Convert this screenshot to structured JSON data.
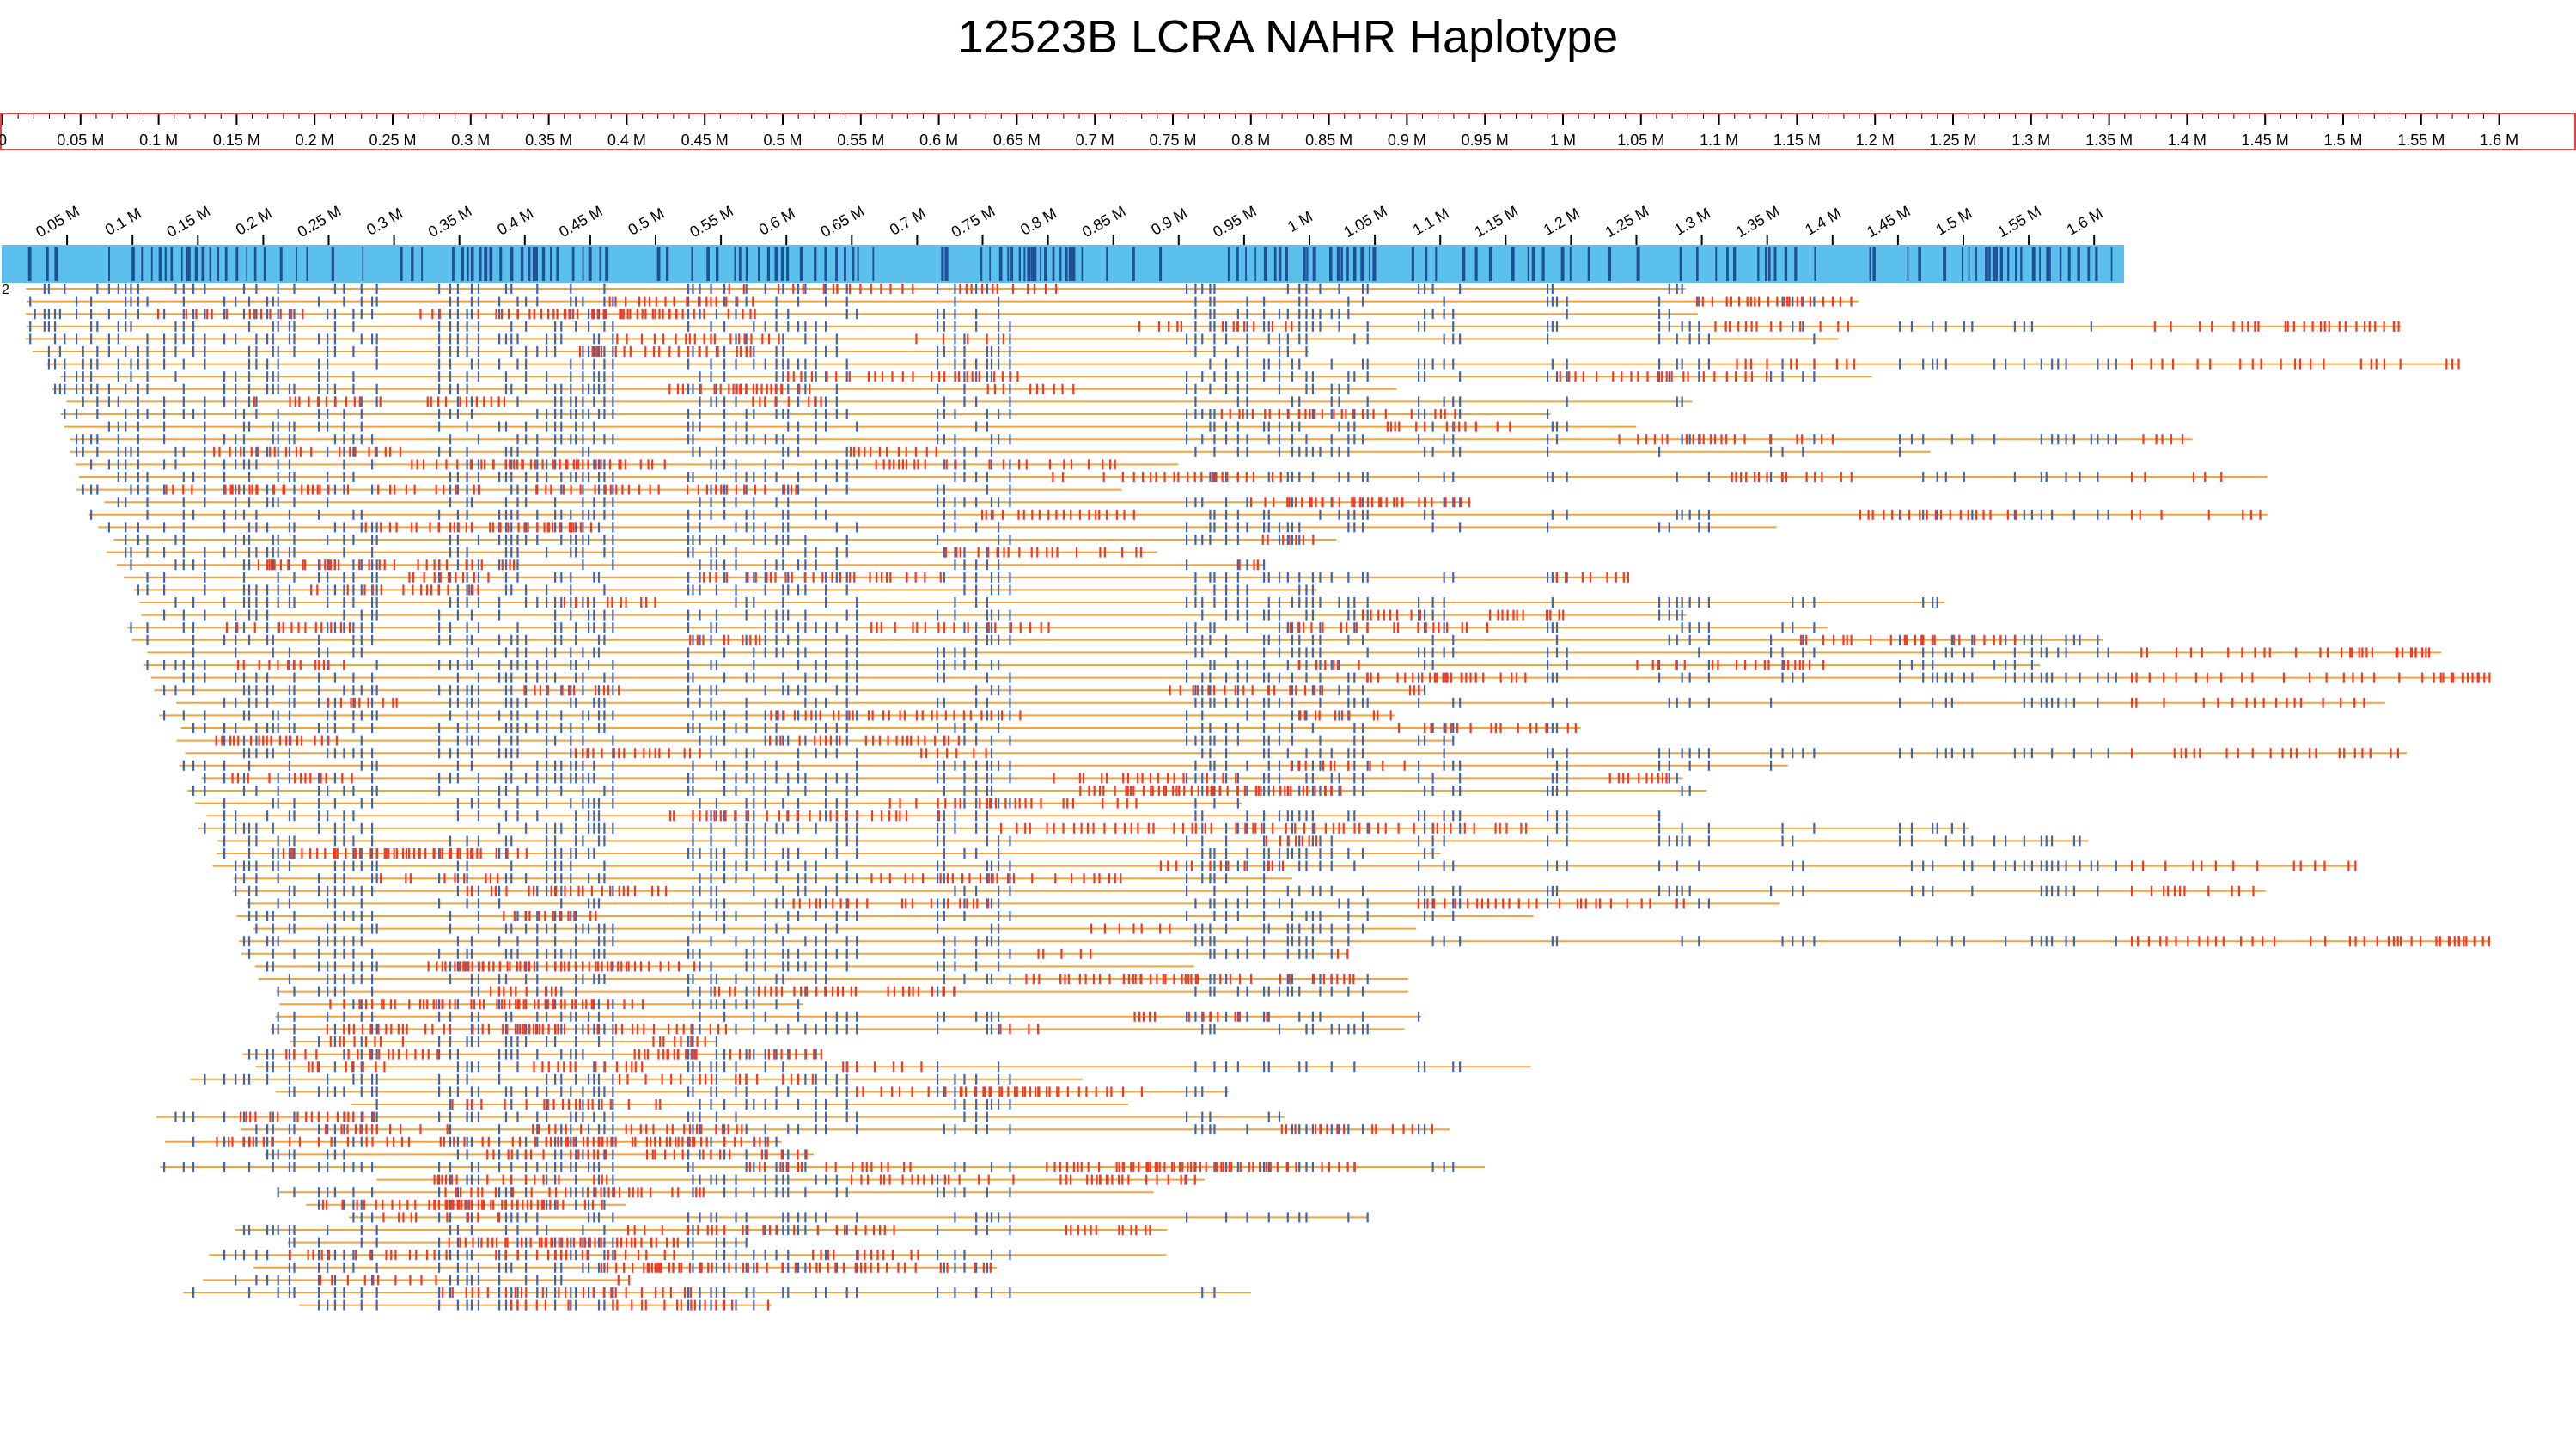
{
  "title": "12523B LCRA NAHR Haplotype",
  "ruler": {
    "ticks": [
      "0",
      "0.05 M",
      "0.1 M",
      "0.15 M",
      "0.2 M",
      "0.25 M",
      "0.3 M",
      "0.35 M",
      "0.4 M",
      "0.45 M",
      "0.5 M",
      "0.55 M",
      "0.6 M",
      "0.65 M",
      "0.7 M",
      "0.75 M",
      "0.8 M",
      "0.85 M",
      "0.9 M",
      "0.95 M",
      "1 M",
      "1.05 M",
      "1.1 M",
      "1.15 M",
      "1.2 M",
      "1.25 M",
      "1.3 M",
      "1.35 M",
      "1.4 M",
      "1.45 M",
      "1.5 M",
      "1.55 M",
      "1.6 M"
    ],
    "border_color": "#e8433c"
  },
  "track": {
    "ticks": [
      "0.05 M",
      "0.1 M",
      "0.15 M",
      "0.2 M",
      "0.25 M",
      "0.3 M",
      "0.35 M",
      "0.4 M",
      "0.45 M",
      "0.5 M",
      "0.55 M",
      "0.6 M",
      "0.65 M",
      "0.7 M",
      "0.75 M",
      "0.8 M",
      "0.85 M",
      "0.9 M",
      "0.95 M",
      "1 M",
      "1.05 M",
      "1.1 M",
      "1.15 M",
      "1.2 M",
      "1.25 M",
      "1.3 M",
      "1.35 M",
      "1.4 M",
      "1.45 M",
      "1.5 M",
      "1.55 M",
      "1.6 M"
    ],
    "bar_color": "#5bc0eb",
    "mark_color": "#1f4f96"
  },
  "reads": {
    "row_label": "2",
    "line_color": "#f2a33a",
    "match_color": "#3a66b5",
    "mismatch_color": "#ef3b24",
    "row_count": 82
  }
}
